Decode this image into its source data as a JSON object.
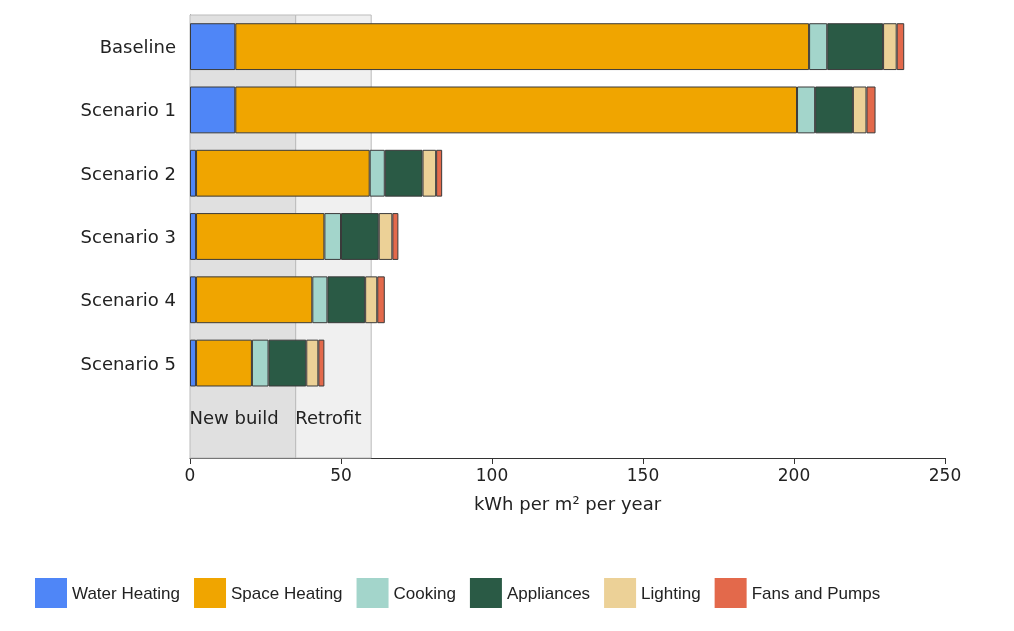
{
  "chart_data": {
    "type": "bar",
    "orientation": "horizontal",
    "stacked": true,
    "xlabel": "kWh per m² per year",
    "categories": [
      "Baseline",
      "Scenario 1",
      "Scenario 2",
      "Scenario 3",
      "Scenario 4",
      "Scenario 5"
    ],
    "series": [
      {
        "name": "Water Heating",
        "color": "#4f86f7",
        "values": [
          15,
          15,
          2,
          2,
          2,
          2
        ]
      },
      {
        "name": "Space Heating",
        "color": "#f0a500",
        "values": [
          190,
          186,
          57.5,
          42.5,
          38.5,
          18.5
        ]
      },
      {
        "name": "Cooking",
        "color": "#a3d5cb",
        "values": [
          6,
          6,
          5,
          5.5,
          5,
          5.5
        ]
      },
      {
        "name": "Appliances",
        "color": "#2a5a45",
        "values": [
          18.5,
          12.5,
          12.5,
          12.5,
          12.5,
          12.5
        ]
      },
      {
        "name": "Lighting",
        "color": "#ecd197",
        "values": [
          4.5,
          4.5,
          4.5,
          4.5,
          4,
          4
        ]
      },
      {
        "name": "Fans and Pumps",
        "color": "#e3694b",
        "values": [
          2.5,
          3,
          2,
          2,
          2.5,
          2
        ]
      }
    ],
    "xlim": [
      0,
      250
    ],
    "xticks": [
      0,
      50,
      100,
      150,
      200,
      250
    ],
    "grid": false,
    "legend": "bottom",
    "bands": [
      {
        "axis": "x",
        "from": 0,
        "to": 35,
        "label": "New build",
        "color": "#e0e0e0"
      },
      {
        "axis": "x",
        "from": 35,
        "to": 60,
        "label": "Retrofit",
        "color": "#f0f0f0"
      }
    ]
  }
}
